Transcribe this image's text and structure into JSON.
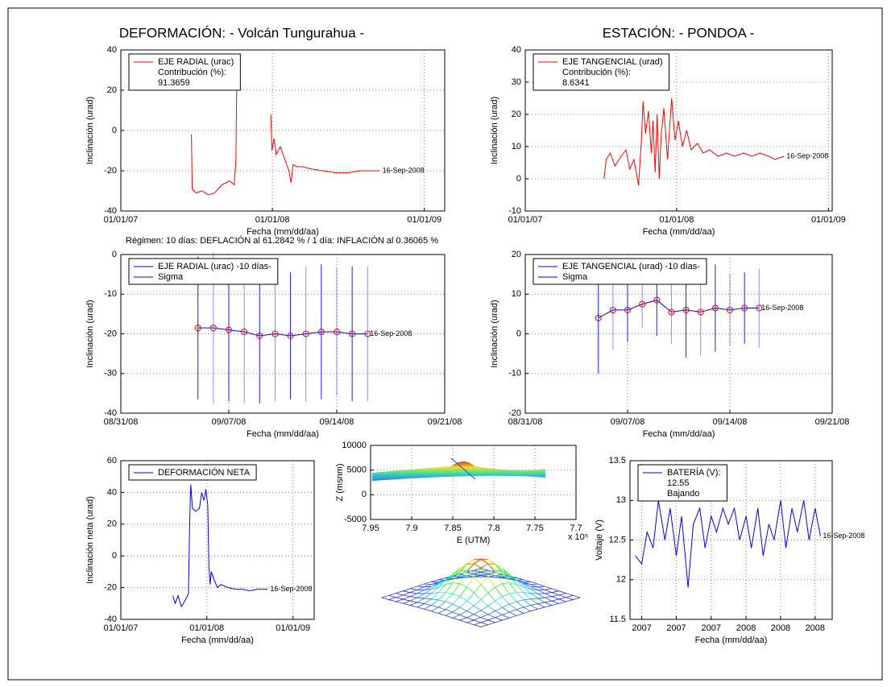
{
  "chart_data": [
    {
      "type": "line",
      "title": "DEFORMACIÓN: - Volcán Tungurahua -",
      "xlabel": "Fecha (mm/dd/aa)",
      "ylabel": "Inclinación (urad)",
      "xlim": [
        "01/01/07",
        "02/19/09"
      ],
      "xticks": [
        "01/01/07",
        "01/01/08",
        "01/01/09"
      ],
      "ylim": [
        -40,
        40
      ],
      "yticks": [
        -40,
        -20,
        0,
        20,
        40
      ],
      "grid": true,
      "legend": "upper left",
      "series": [
        {
          "name": "EJE RADIAL (urac)",
          "color": "#ff0000",
          "x": [
            "06/20/07",
            "06/22/07",
            "07/01/07",
            "07/15/07",
            "08/01/07",
            "08/15/07",
            "09/01/07",
            "09/20/07",
            "10/01/07",
            "10/05/07",
            "10/08/07",
            "11/15/07",
            "12/28/07",
            "12/31/07",
            "01/05/08",
            "01/10/08",
            "01/20/08",
            "02/01/08",
            "02/10/08",
            "02/15/08",
            "02/20/08",
            "03/01/08",
            "03/15/08",
            "04/01/08",
            "05/01/08",
            "06/01/08",
            "07/01/08",
            "08/01/08",
            "09/16/08"
          ],
          "values": [
            -2,
            -29,
            -31,
            -30,
            -32,
            -31,
            -27,
            -25,
            -27,
            -15,
            38,
            null,
            8,
            -10,
            -4,
            -12,
            -8,
            -15,
            -20,
            -26,
            -17,
            -18,
            -18,
            -19,
            -20,
            -21,
            -21,
            -20,
            -20
          ]
        }
      ],
      "legend_notes": [
        "Contribución (%):",
        "91.3659"
      ],
      "end_label": "16-Sep-2008"
    },
    {
      "type": "line",
      "title": "ESTACIÓN: - PONDOA -",
      "xlabel": "Fecha (mm/dd/aa)",
      "ylabel": "Inclinación (urad)",
      "xlim": [
        "01/01/07",
        "01/10/09"
      ],
      "xticks": [
        "01/01/07",
        "01/01/08",
        "01/01/09"
      ],
      "ylim": [
        -10,
        40
      ],
      "yticks": [
        -10,
        0,
        10,
        20,
        30,
        40
      ],
      "grid": true,
      "legend": "upper left",
      "series": [
        {
          "name": "EJE TANGENCIAL (urad)",
          "color": "#ff0000",
          "x": [
            "07/10/07",
            "07/15/07",
            "07/25/07",
            "08/05/07",
            "08/20/07",
            "09/01/07",
            "09/10/07",
            "09/20/07",
            "10/01/07",
            "10/08/07",
            "10/12/07",
            "10/18/07",
            "10/25/07",
            "11/01/07",
            "11/05/07",
            "11/10/07",
            "11/15/07",
            "11/20/07",
            "11/25/07",
            "12/01/07",
            "12/10/07",
            "12/20/07",
            "12/28/07",
            "01/05/08",
            "01/15/08",
            "01/25/08",
            "02/05/08",
            "02/20/08",
            "03/05/08",
            "03/20/08",
            "04/10/08",
            "05/01/08",
            "05/20/08",
            "06/10/08",
            "07/01/08",
            "07/20/08",
            "08/10/08",
            "08/25/08",
            "09/16/08"
          ],
          "values": [
            0,
            6,
            8,
            4,
            7,
            9,
            3,
            6,
            -2,
            12,
            24,
            14,
            21,
            8,
            18,
            2,
            20,
            0,
            14,
            22,
            6,
            25,
            12,
            18,
            10,
            15,
            9,
            11,
            8,
            9,
            7,
            8,
            7,
            8,
            7,
            8,
            7,
            6,
            7
          ]
        }
      ],
      "legend_notes": [
        "Contribución (%):",
        "8.6341"
      ],
      "end_label": "16-Sep-2008"
    },
    {
      "type": "errorbar",
      "title": "Régimen: 10 días: DEFLACIÓN al 61.2842 % / 1 día: INFLACIÓN al 0.36065 %",
      "xlabel": "Fecha (mm/dd/aa)",
      "ylabel": "Inclinación (urad)",
      "xlim": [
        "08/31/08",
        "09/21/08"
      ],
      "xticks": [
        "08/31/08",
        "09/07/08",
        "09/14/08",
        "09/21/08"
      ],
      "ylim": [
        -40,
        0
      ],
      "yticks": [
        -40,
        -30,
        -20,
        -10,
        0
      ],
      "grid": true,
      "legend": "upper left",
      "series": [
        {
          "name": "EJE RADIAL (urac) -10 días-",
          "error_name": "Sigma",
          "color": "#0000ff",
          "marker_color": "#ff0000",
          "x": [
            "09/05/08",
            "09/06/08",
            "09/07/08",
            "09/08/08",
            "09/09/08",
            "09/10/08",
            "09/11/08",
            "09/12/08",
            "09/13/08",
            "09/14/08",
            "09/15/08",
            "09/16/08"
          ],
          "values": [
            -18.5,
            -18.5,
            -19,
            -19.5,
            -20.5,
            -20,
            -20.5,
            -20,
            -19.5,
            -19.5,
            -20,
            -20
          ],
          "errors": [
            18,
            19,
            18,
            18,
            17,
            17,
            16,
            17,
            17,
            16,
            17,
            17
          ]
        }
      ],
      "end_label": "16-Sep-2008"
    },
    {
      "type": "errorbar",
      "xlabel": "Fecha (mm/dd/aa)",
      "ylabel": "Inclinación (urad)",
      "xlim": [
        "08/31/08",
        "09/21/08"
      ],
      "xticks": [
        "08/31/08",
        "09/07/08",
        "09/14/08",
        "09/21/08"
      ],
      "ylim": [
        -20,
        20
      ],
      "yticks": [
        -20,
        -10,
        0,
        10,
        20
      ],
      "grid": true,
      "legend": "upper left",
      "series": [
        {
          "name": "EJE TANGENCIAL (urad) -10 días-",
          "error_name": "Sigma",
          "color": "#0000ff",
          "marker_color": "#ff0000",
          "x": [
            "09/05/08",
            "09/06/08",
            "09/07/08",
            "09/08/08",
            "09/09/08",
            "09/10/08",
            "09/11/08",
            "09/12/08",
            "09/13/08",
            "09/14/08",
            "09/15/08",
            "09/16/08"
          ],
          "values": [
            4,
            6,
            6,
            7.5,
            8.5,
            5.5,
            6,
            5.5,
            6.5,
            6,
            6.5,
            6.5
          ],
          "errors": [
            14,
            10,
            8,
            6,
            9,
            8,
            12,
            11,
            11,
            9,
            9,
            10
          ]
        }
      ],
      "end_label": "16-Sep-2008"
    },
    {
      "type": "line",
      "xlabel": "Fecha (mm/dd/aa)",
      "ylabel": "Inclinación neta (urad)",
      "xlim": [
        "01/01/07",
        "04/01/09"
      ],
      "xticks": [
        "01/01/07",
        "01/01/08",
        "01/01/09"
      ],
      "ylim": [
        -40,
        60
      ],
      "yticks": [
        -40,
        -20,
        0,
        20,
        40,
        60
      ],
      "grid": true,
      "legend": "upper left",
      "series": [
        {
          "name": "DEFORMACIÓN NETA",
          "color": "#0000ff",
          "x": [
            "08/10/07",
            "08/20/07",
            "09/01/07",
            "09/15/07",
            "10/01/07",
            "10/15/07",
            "10/20/07",
            "10/25/07",
            "11/01/07",
            "11/15/07",
            "12/01/07",
            "12/10/07",
            "12/20/07",
            "12/28/07",
            "01/05/08",
            "01/10/08",
            "01/15/08",
            "01/20/08",
            "02/01/08",
            "02/15/08",
            "03/01/08",
            "04/01/08",
            "05/01/08",
            "06/01/08",
            "07/01/08",
            "08/01/08",
            "09/16/08"
          ],
          "values": [
            -25,
            -30,
            -25,
            -32,
            -28,
            -24,
            20,
            45,
            30,
            28,
            30,
            40,
            35,
            42,
            32,
            -5,
            -18,
            -10,
            -15,
            -20,
            -18,
            -20,
            -21,
            -21,
            -22,
            -21,
            -21
          ]
        }
      ],
      "end_label": "16-Sep-2008"
    },
    {
      "type": "profile",
      "xlabel": "E (UTM)",
      "ylabel": "Z (msnm)",
      "multiplier": "x 10⁵",
      "xlim": [
        7.95,
        7.7
      ],
      "xticks": [
        7.95,
        7.9,
        7.85,
        7.8,
        7.75,
        7.7
      ],
      "ylim": [
        -5000,
        10000
      ],
      "yticks": [
        -5000,
        0,
        5000,
        10000
      ],
      "grid": true
    },
    {
      "type": "line",
      "xlabel": "Fecha (mm/dd/aa)",
      "ylabel": "Voltaje (V)",
      "xlim": [
        "03/01/07",
        "08/15/08"
      ],
      "xticks": [
        {
          "value": "04/01/07",
          "label": "2007"
        },
        {
          "value": "07/01/07",
          "label": "2007"
        },
        {
          "value": "10/01/07",
          "label": "2007"
        },
        {
          "value": "01/01/08",
          "label": "2008"
        },
        {
          "value": "04/01/08",
          "label": "2008"
        },
        {
          "value": "07/01/08",
          "label": "2008"
        }
      ],
      "ylim": [
        11.5,
        13.5
      ],
      "yticks": [
        11.5,
        12,
        12.5,
        13,
        13.5
      ],
      "grid": true,
      "legend": "upper left",
      "series": [
        {
          "name": "BATERÍA (V):",
          "color": "#0000ff",
          "x": [
            "03/15/07",
            "04/01/07",
            "04/15/07",
            "05/01/07",
            "05/15/07",
            "06/01/07",
            "06/15/07",
            "07/01/07",
            "07/15/07",
            "08/01/07",
            "08/15/07",
            "09/01/07",
            "09/15/07",
            "10/01/07",
            "10/15/07",
            "11/01/07",
            "11/15/07",
            "12/01/07",
            "12/15/07",
            "01/01/08",
            "01/15/08",
            "02/01/08",
            "02/15/08",
            "03/01/08",
            "03/15/08",
            "04/01/08",
            "04/15/08",
            "05/01/08",
            "05/15/08",
            "06/01/08",
            "06/15/08",
            "07/01/08",
            "07/15/08"
          ],
          "values": [
            12.3,
            12.2,
            12.6,
            12.4,
            13.0,
            12.5,
            12.9,
            12.3,
            12.8,
            11.9,
            12.7,
            12.9,
            12.4,
            12.8,
            12.6,
            12.9,
            12.7,
            12.9,
            12.5,
            12.8,
            12.4,
            12.9,
            12.3,
            12.7,
            12.5,
            13.0,
            12.4,
            12.9,
            12.6,
            13.0,
            12.5,
            12.9,
            12.55
          ]
        }
      ],
      "legend_notes": [
        "12.55",
        "Bajando"
      ],
      "end_label": "16-Sep-2008"
    }
  ]
}
